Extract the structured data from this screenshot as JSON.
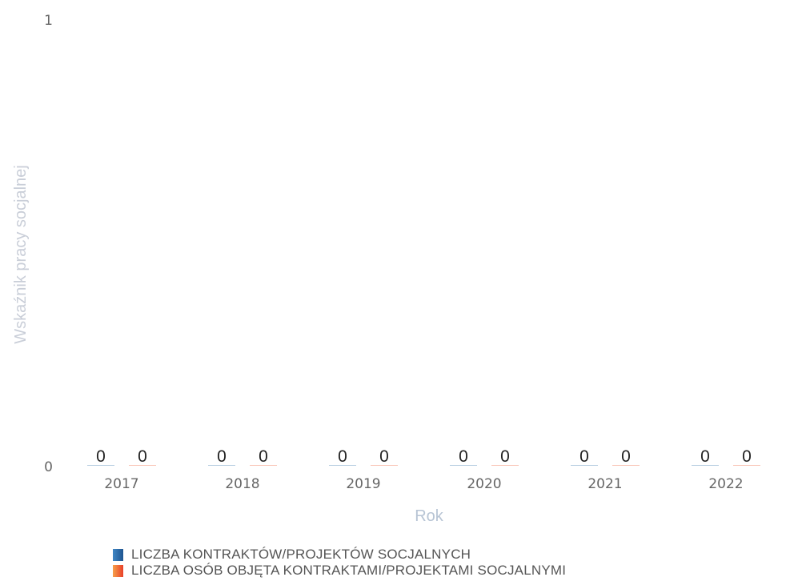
{
  "chart_data": {
    "type": "bar",
    "title": "",
    "xlabel": "Rok",
    "ylabel": "Wskaźnik pracy socjalnej",
    "categories": [
      "2017",
      "2018",
      "2019",
      "2020",
      "2021",
      "2022"
    ],
    "series": [
      {
        "name": "LICZBA KONTRAKTÓW/PROJEKTÓW SOCJALNYCH",
        "color": "#2f6fa8",
        "values": [
          0,
          0,
          0,
          0,
          0,
          0
        ]
      },
      {
        "name": "LICZBA OSÓB OBJĘTA KONTRAKTAMI/PROJEKTAMI SOCJALNYMI",
        "color": "#ef5a2f",
        "values": [
          0,
          0,
          0,
          0,
          0,
          0
        ]
      }
    ],
    "ylim": [
      0,
      1
    ],
    "yticks": [
      "0",
      "1"
    ],
    "grid": false,
    "legend_position": "bottom-left"
  }
}
